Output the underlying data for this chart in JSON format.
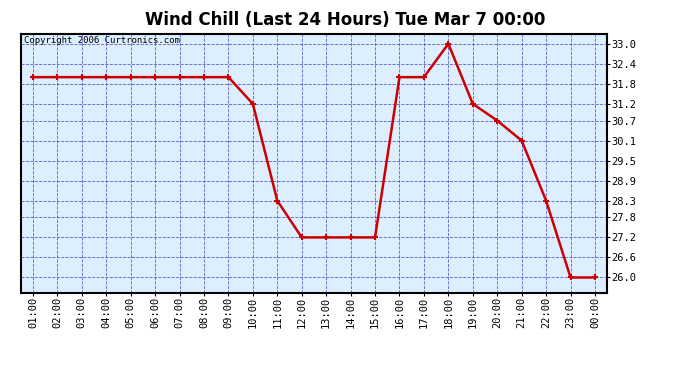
{
  "title": "Wind Chill (Last 24 Hours) Tue Mar 7 00:00",
  "copyright": "Copyright 2006 Curtronics.com",
  "x_labels": [
    "01:00",
    "02:00",
    "03:00",
    "04:00",
    "05:00",
    "06:00",
    "07:00",
    "08:00",
    "09:00",
    "10:00",
    "11:00",
    "12:00",
    "13:00",
    "14:00",
    "15:00",
    "16:00",
    "17:00",
    "18:00",
    "19:00",
    "20:00",
    "21:00",
    "22:00",
    "23:00",
    "00:00"
  ],
  "y_values": [
    32.0,
    32.0,
    32.0,
    32.0,
    32.0,
    32.0,
    32.0,
    32.0,
    32.0,
    31.2,
    28.3,
    27.2,
    27.2,
    27.2,
    27.2,
    32.0,
    32.0,
    33.0,
    31.2,
    30.7,
    30.1,
    28.3,
    26.0,
    26.0
  ],
  "y_ticks": [
    26.0,
    26.6,
    27.2,
    27.8,
    28.3,
    28.9,
    29.5,
    30.1,
    30.7,
    31.2,
    31.8,
    32.4,
    33.0
  ],
  "ylim": [
    25.55,
    33.3
  ],
  "line_color": "#cc0000",
  "marker_color": "#cc0000",
  "fig_bg": "#ffffff",
  "plot_bg": "#ddeeff",
  "grid_color": "#4444cc",
  "title_fontsize": 12,
  "tick_fontsize": 7.5,
  "copyright_fontsize": 6.5
}
